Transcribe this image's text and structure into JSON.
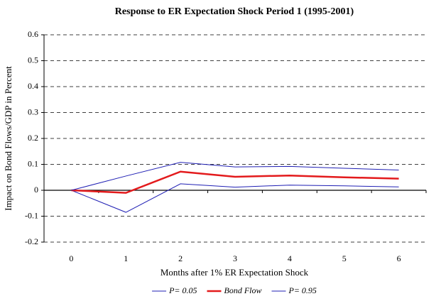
{
  "chart_data": {
    "type": "line",
    "title": "Response to ER Expectation Shock Period 1 (1995-2001)",
    "xlabel": "Months after 1% ER Expectation Shock",
    "ylabel": "Impact on Bond Flows/GDP in Percent",
    "categories": [
      "0",
      "1",
      "2",
      "3",
      "4",
      "5",
      "6"
    ],
    "series": [
      {
        "name": "P= 0.05",
        "color": "#1f1fb4",
        "width": 1,
        "values": [
          0,
          -0.085,
          0.025,
          0.012,
          0.02,
          0.017,
          0.013
        ]
      },
      {
        "name": "Bond Flow",
        "color": "#e31a1c",
        "width": 2.5,
        "values": [
          0,
          -0.01,
          0.072,
          0.052,
          0.057,
          0.05,
          0.045
        ]
      },
      {
        "name": "P= 0.95",
        "color": "#1f1fb4",
        "width": 1,
        "values": [
          0,
          0.055,
          0.108,
          0.09,
          0.092,
          0.085,
          0.078
        ]
      }
    ],
    "ylim": [
      -0.2,
      0.6
    ],
    "yticks": [
      -0.2,
      -0.1,
      0,
      0.1,
      0.2,
      0.3,
      0.4,
      0.5,
      0.6
    ],
    "grid": true,
    "legend": "bottom"
  }
}
